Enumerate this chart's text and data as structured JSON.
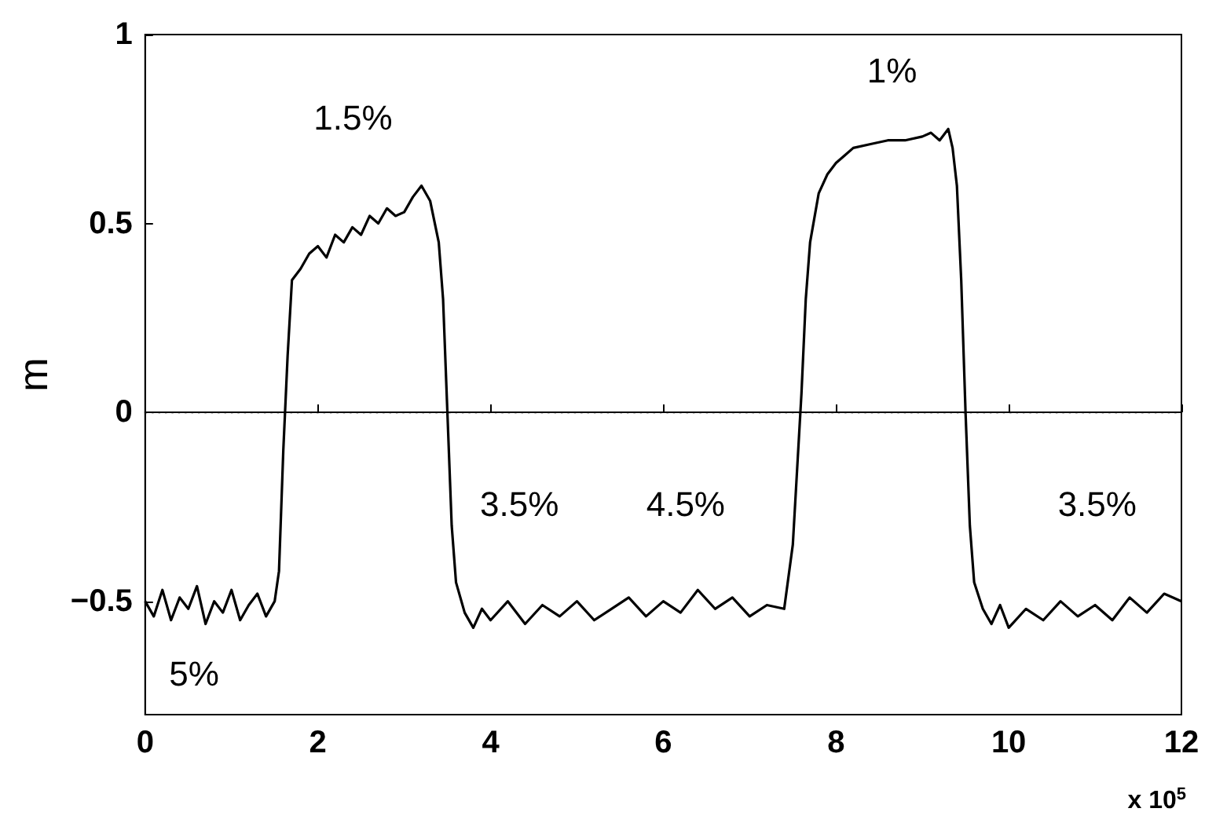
{
  "chart_data": {
    "type": "line",
    "ylabel": "m",
    "x": [
      0,
      0.1,
      0.2,
      0.3,
      0.4,
      0.5,
      0.6,
      0.7,
      0.8,
      0.9,
      1.0,
      1.1,
      1.2,
      1.3,
      1.4,
      1.5,
      1.55,
      1.6,
      1.65,
      1.7,
      1.8,
      1.9,
      2.0,
      2.1,
      2.2,
      2.3,
      2.4,
      2.5,
      2.6,
      2.7,
      2.8,
      2.9,
      3.0,
      3.1,
      3.2,
      3.3,
      3.4,
      3.45,
      3.5,
      3.55,
      3.6,
      3.7,
      3.8,
      3.9,
      4.0,
      4.2,
      4.4,
      4.6,
      4.8,
      5.0,
      5.2,
      5.4,
      5.6,
      5.8,
      6.0,
      6.2,
      6.4,
      6.6,
      6.8,
      7.0,
      7.2,
      7.4,
      7.5,
      7.55,
      7.6,
      7.65,
      7.7,
      7.8,
      7.9,
      8.0,
      8.1,
      8.2,
      8.4,
      8.6,
      8.8,
      9.0,
      9.1,
      9.2,
      9.3,
      9.35,
      9.4,
      9.45,
      9.5,
      9.55,
      9.6,
      9.7,
      9.8,
      9.9,
      10.0,
      10.2,
      10.4,
      10.6,
      10.8,
      11.0,
      11.2,
      11.4,
      11.6,
      11.8,
      12.0
    ],
    "series": [
      {
        "color": "#000000",
        "values": [
          -0.5,
          -0.54,
          -0.47,
          -0.55,
          -0.49,
          -0.52,
          -0.46,
          -0.56,
          -0.5,
          -0.53,
          -0.47,
          -0.55,
          -0.51,
          -0.48,
          -0.54,
          -0.5,
          -0.42,
          -0.1,
          0.15,
          0.35,
          0.38,
          0.42,
          0.44,
          0.41,
          0.47,
          0.45,
          0.49,
          0.47,
          0.52,
          0.5,
          0.54,
          0.52,
          0.53,
          0.57,
          0.6,
          0.56,
          0.45,
          0.3,
          0.0,
          -0.3,
          -0.45,
          -0.53,
          -0.57,
          -0.52,
          -0.55,
          -0.5,
          -0.56,
          -0.51,
          -0.54,
          -0.5,
          -0.55,
          -0.52,
          -0.49,
          -0.54,
          -0.5,
          -0.53,
          -0.47,
          -0.52,
          -0.49,
          -0.54,
          -0.51,
          -0.52,
          -0.35,
          -0.15,
          0.05,
          0.3,
          0.45,
          0.58,
          0.63,
          0.66,
          0.68,
          0.7,
          0.71,
          0.72,
          0.72,
          0.73,
          0.74,
          0.72,
          0.75,
          0.7,
          0.6,
          0.35,
          0.0,
          -0.3,
          -0.45,
          -0.52,
          -0.56,
          -0.51,
          -0.57,
          -0.52,
          -0.55,
          -0.5,
          -0.54,
          -0.51,
          -0.55,
          -0.49,
          -0.53,
          -0.48,
          -0.5
        ]
      }
    ],
    "xlim": [
      0,
      12
    ],
    "xticks": [
      0,
      2,
      4,
      6,
      8,
      10,
      12
    ],
    "ylim": [
      -0.8,
      1
    ],
    "yticks": [
      {
        "value": -0.5,
        "label": "−0.5"
      },
      0,
      0.5,
      1
    ],
    "line_style": "solid",
    "marker": "none",
    "grid": false,
    "ref_lines": [
      {
        "axis": "y",
        "value": 0,
        "color": "#000000",
        "line_style": "dotted"
      }
    ],
    "annotations": [
      "1.5%",
      "1%",
      "3.5%",
      "4.5%",
      "3.5%",
      "5%",
      "x 10$^{5}$"
    ]
  }
}
